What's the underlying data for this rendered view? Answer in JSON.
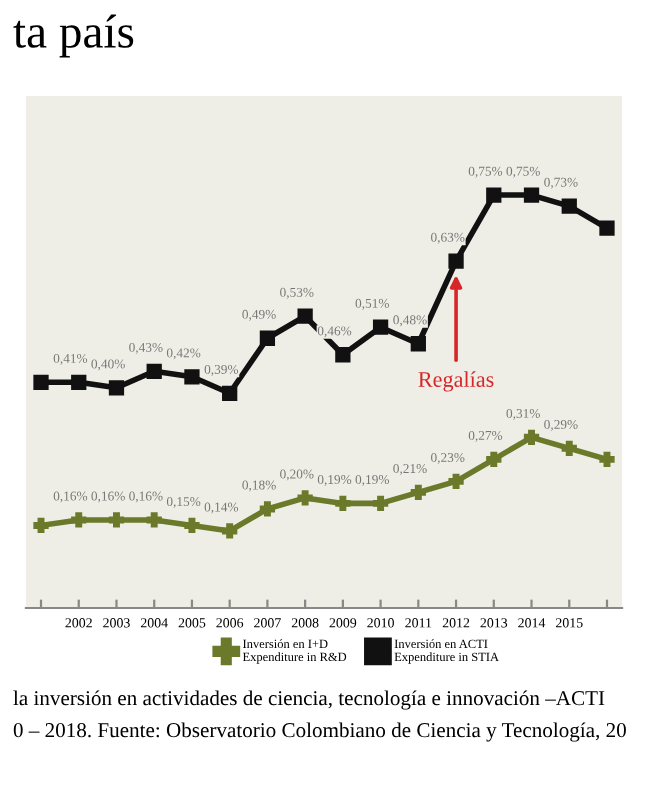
{
  "chart_data": {
    "type": "line",
    "title": "ta país",
    "x": [
      2001,
      2002,
      2003,
      2004,
      2005,
      2006,
      2007,
      2008,
      2009,
      2010,
      2011,
      2012,
      2013,
      2014,
      2015,
      2016
    ],
    "series": [
      {
        "name": "Inversión en I+D\nExpenditure in R&D",
        "color": "#6b7a2a",
        "marker": "cross",
        "values": [
          0.15,
          0.16,
          0.16,
          0.16,
          0.15,
          0.14,
          0.18,
          0.2,
          0.19,
          0.19,
          0.21,
          0.23,
          0.27,
          0.31,
          0.29,
          0.27
        ],
        "value_labels": [
          null,
          "0,16%",
          "0,16%",
          "0,16%",
          "0,15%",
          "0,14%",
          "0,18%",
          "0,20%",
          "0,19%",
          "0,19%",
          "0,21%",
          "0,23%",
          "0,27%",
          "0,31%",
          "0,29%",
          null
        ]
      },
      {
        "name": "Inversión en ACTI\nExpenditure in STIA",
        "color": "#111111",
        "marker": "square",
        "values": [
          0.41,
          0.41,
          0.4,
          0.43,
          0.42,
          0.39,
          0.49,
          0.53,
          0.46,
          0.51,
          0.48,
          0.63,
          0.75,
          0.75,
          0.73,
          0.69
        ],
        "value_labels": [
          null,
          "0,41%",
          "0,40%",
          "0,43%",
          "0,42%",
          "0,39%",
          "0,49%",
          "0,53%",
          "0,46%",
          "0,51%",
          "0,48%",
          "0,63%",
          "0,75%",
          "0,75%",
          "0,73%",
          null
        ]
      }
    ],
    "xlim": [
      2000.6,
      2016.4
    ],
    "xticks": [
      {
        "value": 2001,
        "label": null
      },
      2002,
      2003,
      2004,
      2005,
      2006,
      2007,
      2008,
      2009,
      2010,
      2011,
      2012,
      2013,
      2014,
      2015,
      {
        "value": 2016,
        "label": null
      }
    ],
    "ylim": [
      0,
      0.93
    ],
    "tick_labels": "x",
    "legend": "bottom",
    "line_style": "solid",
    "annotations": [
      {
        "text": "Regalías",
        "x": 2012,
        "y": 0.63
      },
      "la inversión en actividades de ciencia, tecnología e innovación –ACTI",
      "0 – 2018. Fuente: Observatorio Colombiano de Ciencia y Tecnología, 20"
    ]
  }
}
